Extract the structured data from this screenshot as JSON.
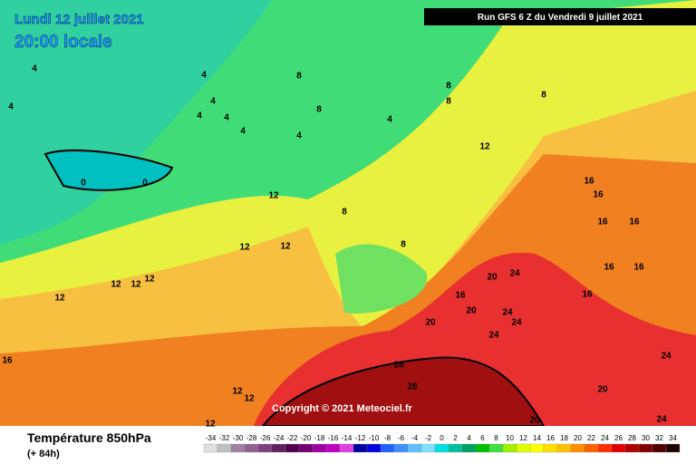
{
  "header": {
    "date": "Lundi 12 juillet 2021",
    "time": "20:00 locale",
    "run": "Run GFS 6 Z du Vendredi 9 juillet 2021"
  },
  "copyright": "Copyright © 2021 Meteociel.fr",
  "footer": {
    "title": "Température 850hPa",
    "lead": "(+ 84h)"
  },
  "legend": {
    "ticks": [
      -34,
      -32,
      -30,
      -28,
      -26,
      -24,
      -22,
      -20,
      -18,
      -16,
      -14,
      -12,
      -10,
      -8,
      -6,
      -4,
      -2,
      0,
      2,
      4,
      6,
      8,
      10,
      12,
      14,
      16,
      18,
      20,
      22,
      24,
      26,
      28,
      30,
      32,
      34
    ],
    "colors": [
      "#e0e0e0",
      "#c0c0c0",
      "#a080a0",
      "#906090",
      "#804080",
      "#602060",
      "#500050",
      "#700070",
      "#a000a0",
      "#c000c0",
      "#e040e0",
      "#0000a0",
      "#0000e0",
      "#2060ff",
      "#4090ff",
      "#60c0ff",
      "#80e0ff",
      "#00e0e0",
      "#00c0a0",
      "#00a060",
      "#00c000",
      "#40e040",
      "#a0f000",
      "#e0ff00",
      "#ffff00",
      "#ffe000",
      "#ffc000",
      "#ff9000",
      "#ff6000",
      "#ff3000",
      "#e00000",
      "#b00000",
      "#800000",
      "#500000",
      "#200000"
    ]
  },
  "contour_labels": [
    0,
    0,
    4,
    4,
    4,
    4,
    4,
    4,
    4,
    8,
    8,
    8,
    4,
    4,
    8,
    8,
    12,
    12,
    16,
    16,
    16,
    16,
    16,
    16,
    12,
    12,
    12,
    12,
    12,
    12,
    8,
    8,
    16,
    20,
    20,
    24,
    24,
    24,
    24,
    28,
    20,
    20,
    24,
    24,
    28,
    12,
    12,
    12,
    16,
    16,
    20
  ]
}
